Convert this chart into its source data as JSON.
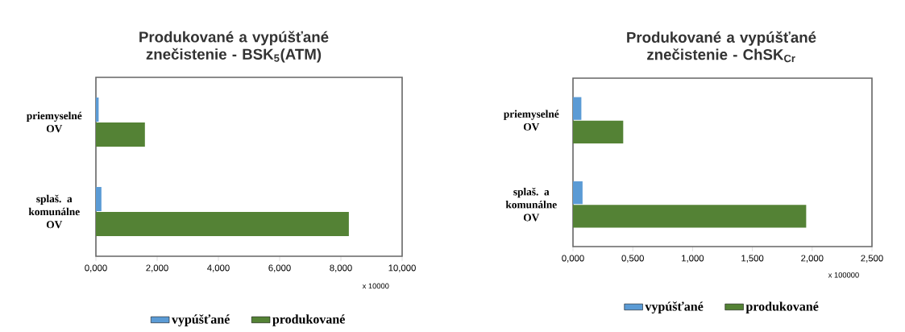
{
  "chart_data": [
    {
      "type": "bar",
      "orientation": "horizontal",
      "title": "Produkované a vypúšťané znečistenie - BSK$_{5}$(ATM)",
      "categories": [
        "priemyselné OV",
        "splaš. a komunálne OV"
      ],
      "series": [
        {
          "name": "vypúšťané",
          "color": "#5b9bd5",
          "values": [
            0.09,
            0.18
          ]
        },
        {
          "name": "produkované",
          "color": "#548235",
          "values": [
            1.6,
            8.26
          ]
        }
      ],
      "xlim": [
        0,
        10
      ],
      "xticks": [
        {
          "value": 0,
          "label": "0,000"
        },
        {
          "value": 2,
          "label": "2,000"
        },
        {
          "value": 4,
          "label": "4,000"
        },
        {
          "value": 6,
          "label": "6,000"
        },
        {
          "value": 8,
          "label": "8,000"
        },
        {
          "value": 10,
          "label": "10,000"
        }
      ],
      "legend": "bottom",
      "annotations": [
        "x 10000"
      ]
    },
    {
      "type": "bar",
      "orientation": "horizontal",
      "title": "Produkované a vypúšťané znečistenie - ChSK$_{Cr}$",
      "categories": [
        "priemyselné OV",
        "splaš. a komunálne OV"
      ],
      "series": [
        {
          "name": "vypúšťané",
          "color": "#5b9bd5",
          "values": [
            0.07,
            0.08
          ]
        },
        {
          "name": "produkované",
          "color": "#548235",
          "values": [
            0.42,
            1.95
          ]
        }
      ],
      "xlim": [
        0,
        2.5
      ],
      "xticks": [
        {
          "value": 0,
          "label": "0,000"
        },
        {
          "value": 0.5,
          "label": "0,500"
        },
        {
          "value": 1,
          "label": "1,000"
        },
        {
          "value": 1.5,
          "label": "1,500"
        },
        {
          "value": 2,
          "label": "2,000"
        },
        {
          "value": 2.5,
          "label": "2,500"
        }
      ],
      "legend": "bottom",
      "annotations": [
        "x 100000"
      ]
    }
  ]
}
